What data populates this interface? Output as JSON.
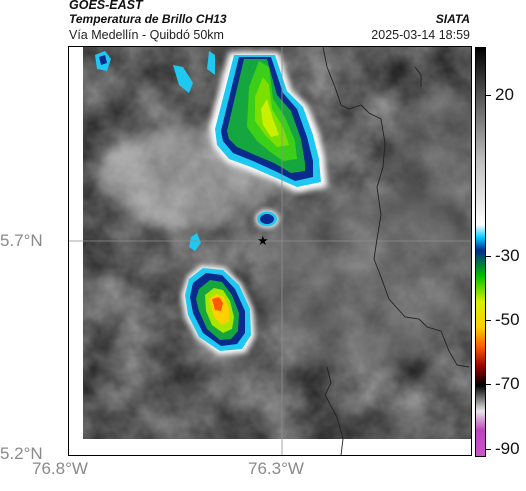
{
  "header": {
    "satellite": "GOES-EAST",
    "product": "Temperatura de Brillo CH13",
    "route": "Vía Medellín - Quibdó 50km",
    "agency": "SIATA",
    "timestamp": "2025-03-14 18:59"
  },
  "axes": {
    "x_ticks": [
      "76.8°W",
      "76.3°W"
    ],
    "y_ticks": [
      "5.7°N",
      "5.2°N"
    ]
  },
  "colorbar": {
    "labels": [
      "20",
      "-30",
      "-50",
      "-70",
      "-90"
    ],
    "stops": [
      {
        "value": 35,
        "color": "#000000"
      },
      {
        "value": 20,
        "color": "#555555"
      },
      {
        "value": 0,
        "color": "#bdbdbd"
      },
      {
        "value": -20,
        "color": "#ffffff"
      },
      {
        "value": -24,
        "color": "#00c8ff"
      },
      {
        "value": -28,
        "color": "#002a8c"
      },
      {
        "value": -36,
        "color": "#00c000"
      },
      {
        "value": -44,
        "color": "#d8f000"
      },
      {
        "value": -52,
        "color": "#ffcc00"
      },
      {
        "value": -58,
        "color": "#ff5a00"
      },
      {
        "value": -64,
        "color": "#990000"
      },
      {
        "value": -70,
        "color": "#000000"
      },
      {
        "value": -78,
        "color": "#e6e6e6"
      },
      {
        "value": -84,
        "color": "#bb44bb"
      },
      {
        "value": -92,
        "color": "#cc55cc"
      }
    ],
    "range": [
      -92,
      35
    ]
  },
  "map": {
    "marker_icon": "star-icon"
  }
}
